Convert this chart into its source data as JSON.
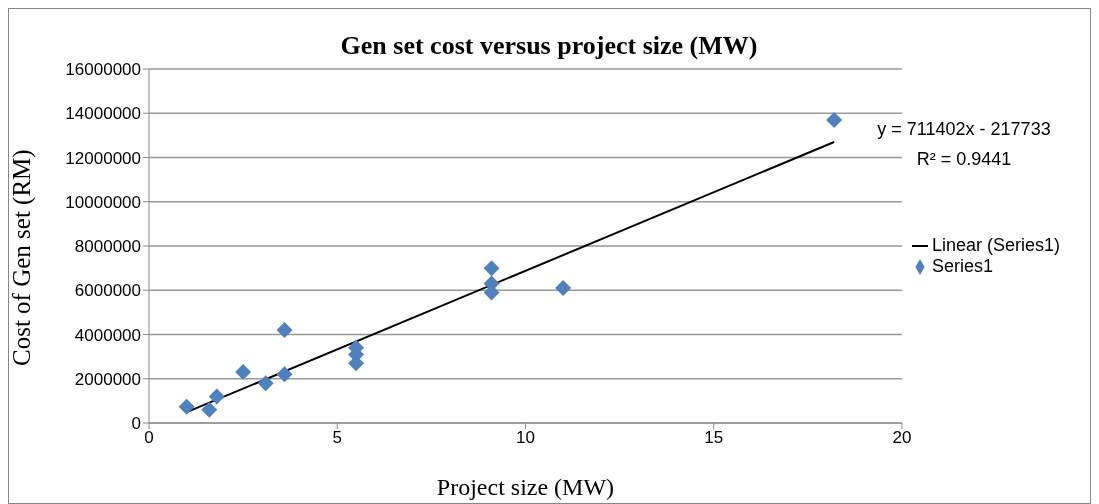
{
  "chart_data": {
    "type": "scatter",
    "title": "Gen set cost versus project size (MW)",
    "xlabel": "Project size (MW)",
    "ylabel": "Cost of Gen set (RM)",
    "xlim": [
      0,
      20
    ],
    "xticks": [
      0,
      5,
      10,
      15,
      20
    ],
    "ylim": [
      0,
      16000000
    ],
    "yticks": [
      0,
      2000000,
      4000000,
      6000000,
      8000000,
      10000000,
      12000000,
      14000000,
      16000000
    ],
    "grid": "y",
    "legend": "right",
    "marker": "diamond",
    "series": [
      {
        "name": "Series1",
        "color": "#4f81bd",
        "x": [
          1,
          1.6,
          1.8,
          2.5,
          3.1,
          3.6,
          3.6,
          5.5,
          5.5,
          5.5,
          9.1,
          9.1,
          9.1,
          11,
          18.2
        ],
        "values": [
          740000,
          600000,
          1200000,
          2300000,
          1800000,
          2200000,
          4200000,
          3400000,
          3100000,
          2700000,
          7000000,
          6300000,
          5900000,
          6100000,
          13700000
        ]
      },
      {
        "name": "Linear (Series1)",
        "type": "line",
        "marker": "none",
        "color": "#000000",
        "x": [
          1,
          18.2
        ],
        "values": [
          490000,
          12700000
        ]
      }
    ],
    "annotations": [
      "y = 711402x - 217733",
      "R² = 0.9441"
    ]
  }
}
